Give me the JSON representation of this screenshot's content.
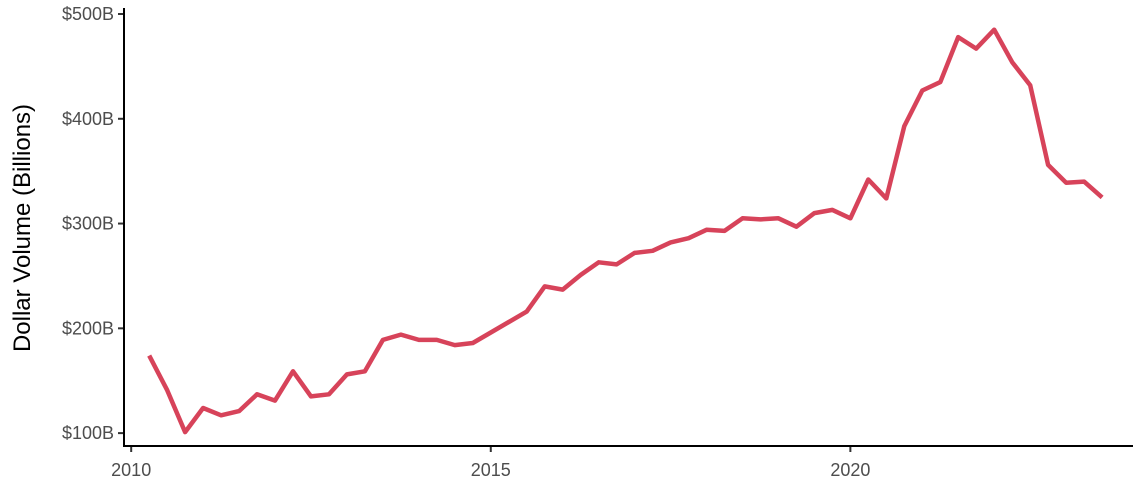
{
  "chart_data": {
    "type": "line",
    "title": "",
    "xlabel": "",
    "ylabel": "Dollar Volume (Billions)",
    "xlim": [
      2009.9,
      2023.93
    ],
    "ylim": [
      87.7,
      500
    ],
    "x_ticks": [
      {
        "value": 2010,
        "label": "2010"
      },
      {
        "value": 2015,
        "label": "2015"
      },
      {
        "value": 2020,
        "label": "2020"
      }
    ],
    "y_ticks": [
      {
        "value": 100,
        "label": "$100B"
      },
      {
        "value": 200,
        "label": "$200B"
      },
      {
        "value": 300,
        "label": "$300B"
      },
      {
        "value": 400,
        "label": "$400B"
      },
      {
        "value": 500,
        "label": "$500B"
      }
    ],
    "grid": false,
    "line_color": "#d7435a",
    "series": [
      {
        "x": [
          2010.25,
          2010.5,
          2010.75,
          2011.0,
          2011.25,
          2011.5,
          2011.75,
          2012.0,
          2012.25,
          2012.5,
          2012.75,
          2013.0,
          2013.25,
          2013.5,
          2013.75,
          2014.0,
          2014.25,
          2014.5,
          2014.75,
          2015.0,
          2015.25,
          2015.5,
          2015.75,
          2016.0,
          2016.25,
          2016.5,
          2016.75,
          2017.0,
          2017.25,
          2017.5,
          2017.75,
          2018.0,
          2018.25,
          2018.5,
          2018.75,
          2019.0,
          2019.25,
          2019.5,
          2019.75,
          2020.0,
          2020.25,
          2020.5,
          2020.75,
          2021.0,
          2021.25,
          2021.5,
          2021.75,
          2022.0,
          2022.25,
          2022.5,
          2022.75,
          2023.0,
          2023.25,
          2023.5
        ],
        "values": [
          174,
          141,
          101,
          124,
          117,
          121,
          137,
          131,
          159,
          135,
          137,
          156,
          159,
          189,
          194,
          189,
          189,
          184,
          186,
          196,
          206,
          216,
          240,
          237,
          251,
          263,
          261,
          272,
          274,
          282,
          286,
          294,
          293,
          305,
          304,
          305,
          297,
          310,
          313,
          305,
          342,
          324,
          393,
          427,
          435,
          478,
          467,
          485,
          454,
          432,
          356,
          339,
          340,
          325
        ]
      }
    ]
  }
}
